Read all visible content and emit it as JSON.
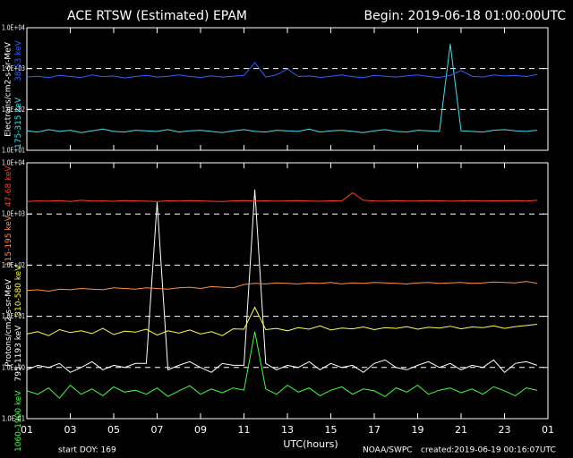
{
  "header": {
    "title": "ACE RTSW (Estimated) EPAM",
    "begin": "Begin: 2019-06-18 01:00:00UTC"
  },
  "footer": {
    "doy": "start DOY:  169",
    "agency": "NOAA/SWPC",
    "created": "created:2019-06-19 00:16:07UTC"
  },
  "chart_data": [
    {
      "type": "line",
      "ylabel": "Electrons/cm2-s-sr-MeV",
      "log_y": true,
      "grid": true,
      "x": [
        0,
        0.5,
        1,
        1.5,
        2,
        2.5,
        3,
        3.5,
        4,
        4.5,
        5,
        5.5,
        6,
        6.5,
        7,
        7.5,
        8,
        8.5,
        9,
        9.5,
        10,
        10.5,
        11,
        11.5,
        12,
        12.5,
        13,
        13.5,
        14,
        14.5,
        15,
        15.5,
        16,
        16.5,
        17,
        17.5,
        18,
        18.5,
        19,
        19.5,
        20,
        20.5,
        21,
        21.5,
        22,
        22.5,
        23,
        23.5
      ],
      "xlim": [
        0,
        24
      ],
      "ylim": [
        10,
        10000
      ],
      "yticks": [
        {
          "value": 10,
          "label": "1.0E+01"
        },
        {
          "value": 100,
          "label": "1.0E+02"
        },
        {
          "value": 1000,
          "label": "1.0E+03"
        },
        {
          "value": 10000,
          "label": "1.0E+04"
        }
      ],
      "series": [
        {
          "name": "175-315 keV",
          "color": "#40e0f0",
          "values": [
            30,
            28,
            32,
            29,
            31,
            27,
            30,
            33,
            29,
            28,
            31,
            30,
            29,
            32,
            28,
            30,
            31,
            29,
            27,
            30,
            32,
            29,
            28,
            31,
            30,
            29,
            33,
            28,
            30,
            31,
            29,
            27,
            30,
            32,
            29,
            28,
            31,
            30,
            29,
            4000,
            30,
            29,
            28,
            31,
            32,
            30,
            29,
            31
          ]
        },
        {
          "name": "38-53 keV",
          "color": "#3060ff",
          "values": [
            620,
            650,
            600,
            680,
            640,
            610,
            700,
            630,
            660,
            590,
            640,
            680,
            620,
            650,
            700,
            640,
            610,
            660,
            620,
            650,
            680,
            1400,
            620,
            700,
            980,
            640,
            660,
            610,
            650,
            700,
            630,
            600,
            680,
            650,
            620,
            660,
            700,
            640,
            610,
            680,
            900,
            650,
            620,
            700,
            660,
            680,
            640,
            720
          ]
        }
      ]
    },
    {
      "type": "line",
      "ylabel": "Protons/cm2-s-sr-MeV",
      "xlabel": "UTC(hours)",
      "log_y": true,
      "grid": true,
      "x": [
        0,
        0.5,
        1,
        1.5,
        2,
        2.5,
        3,
        3.5,
        4,
        4.5,
        5,
        5.5,
        6,
        6.5,
        7,
        7.5,
        8,
        8.5,
        9,
        9.5,
        10,
        10.5,
        11,
        11.5,
        12,
        12.5,
        13,
        13.5,
        14,
        14.5,
        15,
        15.5,
        16,
        16.5,
        17,
        17.5,
        18,
        18.5,
        19,
        19.5,
        20,
        20.5,
        21,
        21.5,
        22,
        22.5,
        23,
        23.5
      ],
      "xlim": [
        0,
        24
      ],
      "ylim": [
        0.1,
        10000
      ],
      "xticks": [
        {
          "value": 0,
          "label": "01"
        },
        {
          "value": 2,
          "label": "03"
        },
        {
          "value": 4,
          "label": "05"
        },
        {
          "value": 6,
          "label": "07"
        },
        {
          "value": 8,
          "label": "09"
        },
        {
          "value": 10,
          "label": "11"
        },
        {
          "value": 12,
          "label": "13"
        },
        {
          "value": 14,
          "label": "15"
        },
        {
          "value": 16,
          "label": "17"
        },
        {
          "value": 18,
          "label": "19"
        },
        {
          "value": 20,
          "label": "21"
        },
        {
          "value": 22,
          "label": "23"
        },
        {
          "value": 24,
          "label": "01"
        }
      ],
      "yticks": [
        {
          "value": 0.1,
          "label": "1.0E-01"
        },
        {
          "value": 1,
          "label": "1.0E+00"
        },
        {
          "value": 10,
          "label": "1.0E+01"
        },
        {
          "value": 100,
          "label": "1.0E+02"
        },
        {
          "value": 1000,
          "label": "1.0E+03"
        },
        {
          "value": 10000,
          "label": "1.0E+04"
        }
      ],
      "series": [
        {
          "name": "1060-1900 keV",
          "color": "#40ff40",
          "values": [
            0.35,
            0.3,
            0.4,
            0.25,
            0.45,
            0.3,
            0.38,
            0.28,
            0.42,
            0.33,
            0.36,
            0.3,
            0.4,
            0.27,
            0.35,
            0.44,
            0.3,
            0.38,
            0.32,
            0.4,
            0.36,
            5,
            0.38,
            0.3,
            0.45,
            0.33,
            0.4,
            0.28,
            0.36,
            0.42,
            0.3,
            0.38,
            0.35,
            0.27,
            0.4,
            0.33,
            0.45,
            0.3,
            0.36,
            0.4,
            0.32,
            0.38,
            0.3,
            0.42,
            0.35,
            0.28,
            0.4,
            0.36
          ]
        },
        {
          "name": "795-1193 keV",
          "color": "#ffffff",
          "values": [
            0.9,
            1.1,
            1,
            1.2,
            0.8,
            1,
            1.3,
            0.9,
            1.1,
            1,
            1.2,
            1.2,
            1700,
            0.9,
            1.1,
            1.3,
            1,
            0.8,
            1.2,
            1.1,
            1.1,
            3000,
            1.2,
            0.9,
            1.1,
            1,
            1.3,
            0.9,
            1.2,
            1,
            1.1,
            0.8,
            1.2,
            1.4,
            1,
            0.9,
            1.1,
            1.3,
            1,
            1.2,
            0.9,
            1.1,
            1,
            1.4,
            0.8,
            1.2,
            1.3,
            1.1
          ]
        },
        {
          "name": "310-580 keV",
          "color": "#ffff40",
          "values": [
            4.5,
            5,
            4.2,
            5.5,
            4.8,
            5.2,
            4.6,
            5.8,
            4.4,
            5.1,
            4.9,
            5.6,
            4.3,
            5.2,
            4.7,
            5.4,
            4.5,
            5,
            4.2,
            5.7,
            5.6,
            15,
            5.5,
            5.8,
            5.2,
            6,
            5.6,
            6.5,
            5.4,
            5.9,
            5.7,
            6.2,
            5.5,
            6,
            5.8,
            6.3,
            5.6,
            6.1,
            5.9,
            6.4,
            5.7,
            6.2,
            6,
            6.5,
            5.8,
            6.3,
            6.6,
            7
          ]
        },
        {
          "name": "115-195 keV",
          "color": "#ff9040",
          "values": [
            32,
            33,
            31,
            34,
            33,
            35,
            34,
            33,
            36,
            35,
            34,
            36,
            35,
            34,
            36,
            37,
            35,
            38,
            37,
            36,
            42,
            44,
            43,
            45,
            44,
            43,
            45,
            44,
            46,
            43,
            45,
            44,
            46,
            45,
            44,
            43,
            45,
            46,
            44,
            45,
            46,
            44,
            45,
            47,
            46,
            45,
            48,
            44
          ]
        },
        {
          "name": "47-68 keV",
          "color": "#ff4020",
          "values": [
            1750,
            1800,
            1780,
            1820,
            1760,
            1850,
            1790,
            1800,
            1770,
            1830,
            1800,
            1780,
            1760,
            1810,
            1790,
            1820,
            1800,
            1770,
            1750,
            1800,
            1830,
            1790,
            1810,
            1780,
            1800,
            1820,
            1790,
            1770,
            1810,
            1800,
            2600,
            1850,
            1800,
            1780,
            1820,
            1790,
            1800,
            1830,
            1810,
            1780,
            1800,
            1820,
            1790,
            1810,
            1800,
            1830,
            1790,
            1850
          ]
        }
      ]
    }
  ]
}
